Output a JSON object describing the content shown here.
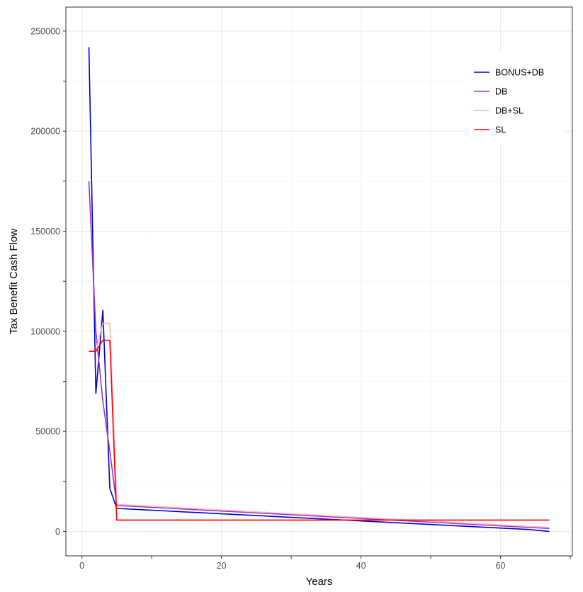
{
  "chart_data": {
    "type": "line",
    "xlabel": "Years",
    "ylabel": "Tax Benefit Cash Flow",
    "xlim": [
      -2.3,
      70.3
    ],
    "ylim": [
      -12200,
      262000
    ],
    "x_ticks": [
      0,
      20,
      40,
      60
    ],
    "y_ticks": [
      0,
      50000,
      100000,
      150000,
      200000,
      250000
    ],
    "x_tick_labels": [
      "0",
      "20",
      "40",
      "60"
    ],
    "y_tick_labels": [
      "0",
      "50000",
      "100000",
      "150000",
      "200000",
      "250000"
    ],
    "grid": true,
    "legend_position": "top-right",
    "series": [
      {
        "name": "BONUS+DB",
        "color": "#0000cd",
        "points": [
          [
            1,
            242000
          ],
          [
            2,
            69000
          ],
          [
            3,
            110500
          ],
          [
            4,
            21500
          ],
          [
            5,
            11500
          ],
          [
            64,
            1000
          ],
          [
            67,
            0
          ]
        ]
      },
      {
        "name": "DB",
        "color": "#9932cc",
        "points": [
          [
            1,
            175000
          ],
          [
            2,
            100000
          ],
          [
            3,
            65000
          ],
          [
            4,
            40000
          ],
          [
            5,
            13000
          ],
          [
            67,
            1500
          ]
        ]
      },
      {
        "name": "DB+SL",
        "color": "#ffb6c1",
        "points": [
          [
            1,
            90000
          ],
          [
            2,
            90000
          ],
          [
            3,
            104000
          ],
          [
            4,
            104000
          ],
          [
            5,
            13500
          ],
          [
            67,
            2000
          ]
        ]
      },
      {
        "name": "SL",
        "color": "#ff0000",
        "points": [
          [
            1,
            90000
          ],
          [
            2,
            90000
          ],
          [
            3,
            95500
          ],
          [
            4,
            95500
          ],
          [
            5,
            5700
          ],
          [
            67,
            5700
          ]
        ]
      }
    ]
  }
}
